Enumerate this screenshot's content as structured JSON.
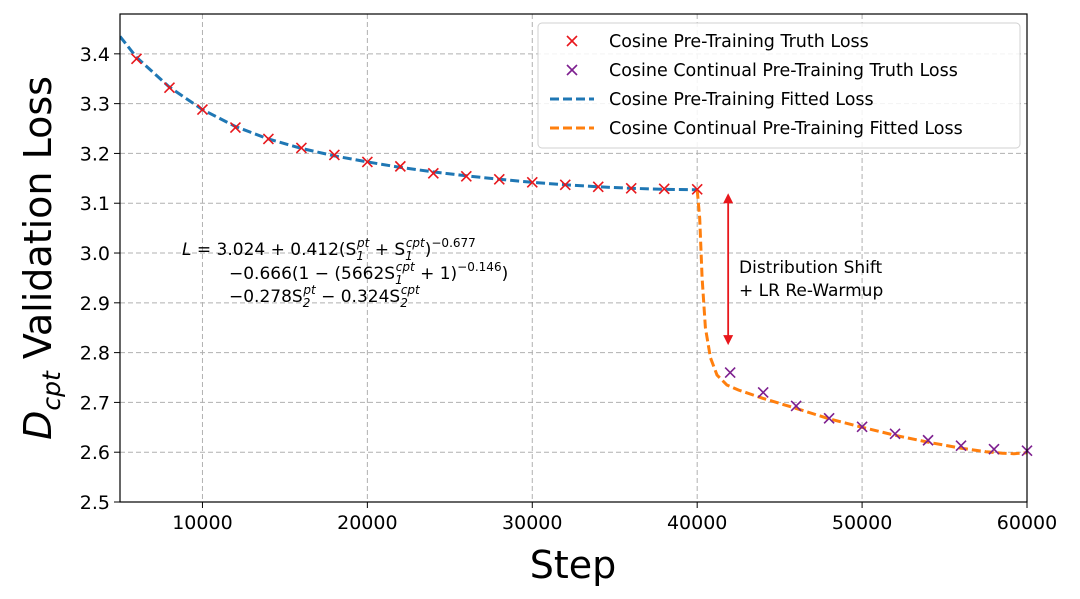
{
  "chart_data": {
    "type": "line",
    "xlabel": "Step",
    "ylabel_main": "D",
    "ylabel_sub": "cpt",
    "ylabel_rest": " Validation Loss",
    "xlim": [
      5000,
      60000
    ],
    "ylim": [
      2.5,
      3.48
    ],
    "xticks": [
      "10000",
      "20000",
      "30000",
      "40000",
      "50000",
      "60000"
    ],
    "xtick_values": [
      10000,
      20000,
      30000,
      40000,
      50000,
      60000
    ],
    "yticks": [
      "2.5",
      "2.6",
      "2.7",
      "2.8",
      "2.9",
      "3.0",
      "3.1",
      "3.2",
      "3.3",
      "3.4"
    ],
    "ytick_values": [
      2.5,
      2.6,
      2.7,
      2.8,
      2.9,
      3.0,
      3.1,
      3.2,
      3.3,
      3.4
    ],
    "grid": true,
    "legend_position": "top-right",
    "series": [
      {
        "name": "Cosine Pre-Training Truth Loss",
        "style": "marker-x",
        "color": "#e8171c",
        "x": [
          6000,
          8000,
          10000,
          12000,
          14000,
          16000,
          18000,
          20000,
          22000,
          24000,
          26000,
          28000,
          30000,
          32000,
          34000,
          36000,
          38000,
          40000
        ],
        "y": [
          3.39,
          3.332,
          3.288,
          3.252,
          3.229,
          3.211,
          3.197,
          3.183,
          3.174,
          3.16,
          3.154,
          3.148,
          3.142,
          3.137,
          3.133,
          3.13,
          3.129,
          3.128
        ]
      },
      {
        "name": "Cosine Continual Pre-Training Truth Loss",
        "style": "marker-x",
        "color": "#7d1f8f",
        "x": [
          42000,
          44000,
          46000,
          48000,
          50000,
          52000,
          54000,
          56000,
          58000,
          60000
        ],
        "y": [
          2.76,
          2.72,
          2.693,
          2.668,
          2.651,
          2.637,
          2.624,
          2.613,
          2.606,
          2.603
        ]
      },
      {
        "name": "Cosine Pre-Training Fitted Loss",
        "style": "dashed-line",
        "color": "#1f77b4",
        "x": [
          5000,
          6000,
          8000,
          10000,
          12000,
          14000,
          16000,
          18000,
          20000,
          22000,
          24000,
          26000,
          28000,
          30000,
          32000,
          34000,
          36000,
          38000,
          40000
        ],
        "y": [
          3.435,
          3.393,
          3.333,
          3.288,
          3.254,
          3.229,
          3.21,
          3.195,
          3.183,
          3.172,
          3.163,
          3.155,
          3.148,
          3.142,
          3.137,
          3.133,
          3.13,
          3.128,
          3.127
        ]
      },
      {
        "name": "Cosine Continual Pre-Training Fitted Loss",
        "style": "dashed-line",
        "color": "#ff7f0e",
        "x": [
          40000,
          40150,
          40300,
          40500,
          40800,
          41200,
          41800,
          42500,
          44000,
          46000,
          48000,
          50000,
          52000,
          54000,
          56000,
          57500,
          58500,
          59200,
          60000
        ],
        "y": [
          3.127,
          3.07,
          2.95,
          2.85,
          2.79,
          2.755,
          2.735,
          2.725,
          2.708,
          2.688,
          2.667,
          2.65,
          2.634,
          2.62,
          2.608,
          2.601,
          2.598,
          2.597,
          2.599
        ]
      }
    ],
    "annotations": {
      "arrow_label_line1": "Distribution Shift",
      "arrow_label_line2": "+ LR Re-Warmup",
      "arrow_x": 42000,
      "arrow_y_from": 3.12,
      "arrow_y_to": 2.815,
      "arrow_color": "#e8171c"
    },
    "formula": {
      "line1_a": "L",
      "line1_b": " = 3.024 + 0.412(S",
      "line1_c": " + S",
      "line1_d": ")",
      "line1_exp": "−0.677",
      "line2_a": "−0.666(1 − (5662S",
      "line2_b": " + 1)",
      "line2_exp": "−0.146",
      "line2_c": ")",
      "line3_a": "−0.278S",
      "line3_b": " − 0.324S",
      "sub1": "1",
      "sub2": "2",
      "sup_pt": "pt",
      "sup_cpt": "cpt"
    }
  }
}
